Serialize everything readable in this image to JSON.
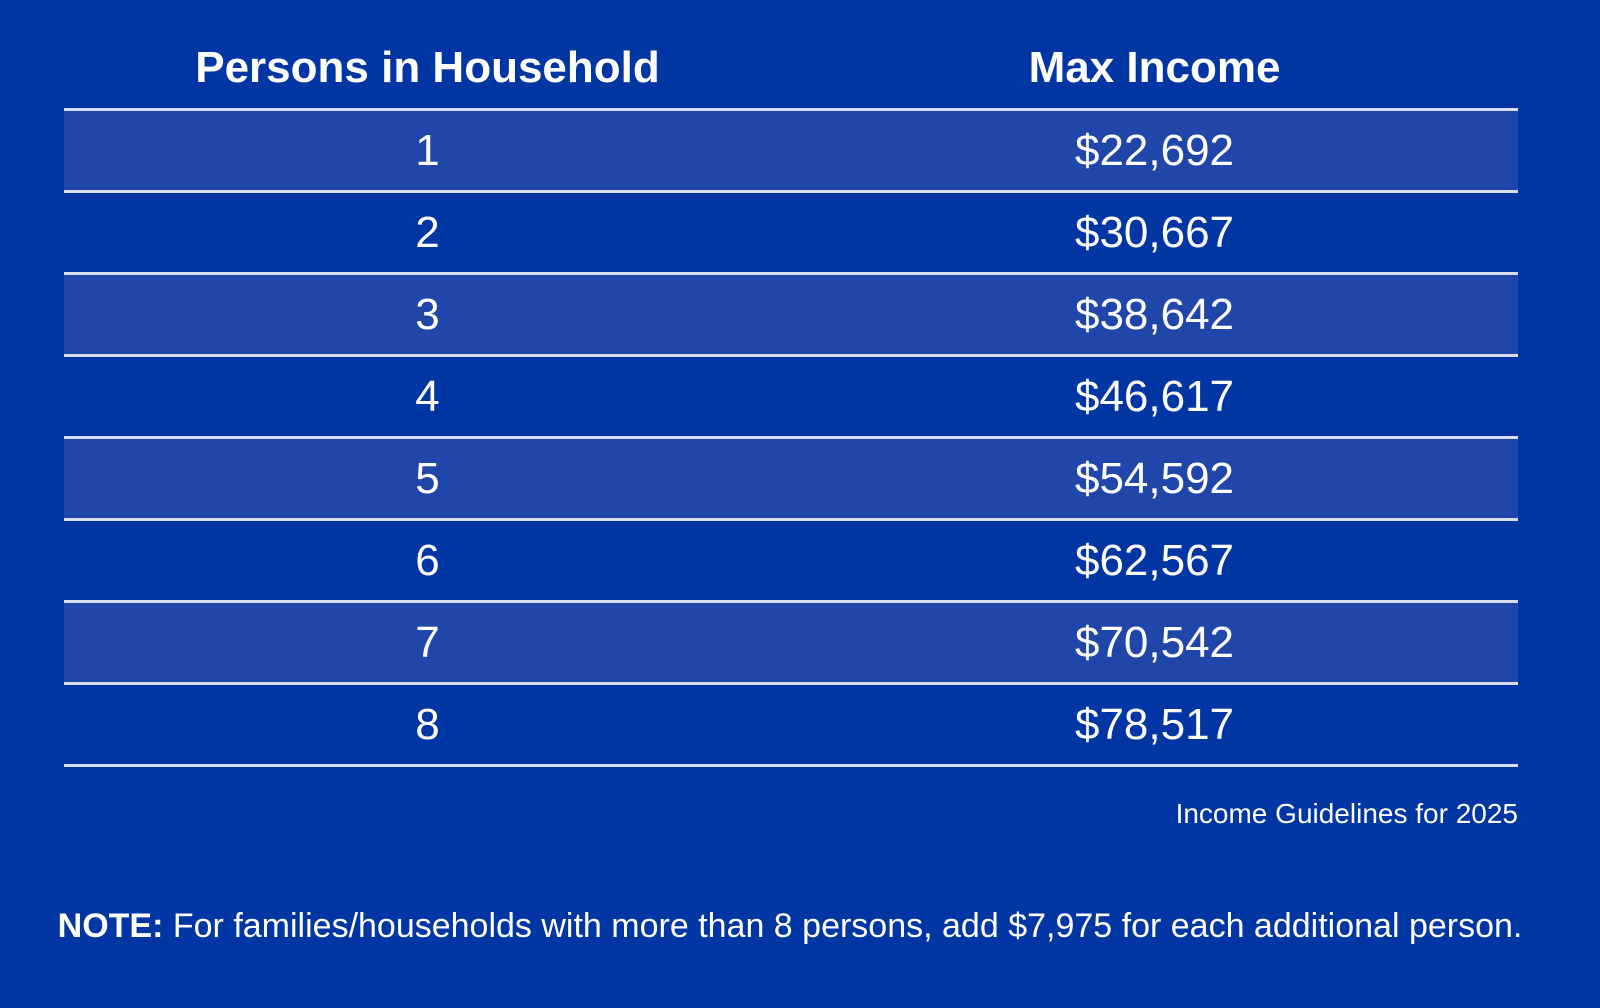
{
  "table": {
    "headers": [
      "Persons in Household",
      "Max Income"
    ],
    "rows": [
      {
        "persons": "1",
        "income": "$22,692"
      },
      {
        "persons": "2",
        "income": "$30,667"
      },
      {
        "persons": "3",
        "income": "$38,642"
      },
      {
        "persons": "4",
        "income": "$46,617"
      },
      {
        "persons": "5",
        "income": "$54,592"
      },
      {
        "persons": "6",
        "income": "$62,567"
      },
      {
        "persons": "7",
        "income": "$70,542"
      },
      {
        "persons": "8",
        "income": "$78,517"
      }
    ]
  },
  "caption": "Income Guidelines for 2025",
  "note": {
    "label": "NOTE:",
    "text": " For families/households with more than 8 persons, add $7,975 for each additional person."
  },
  "colors": {
    "background": "#0036a3",
    "shaded_row": "#2046aa",
    "text": "#ffffff",
    "rule": "#d7def0"
  }
}
